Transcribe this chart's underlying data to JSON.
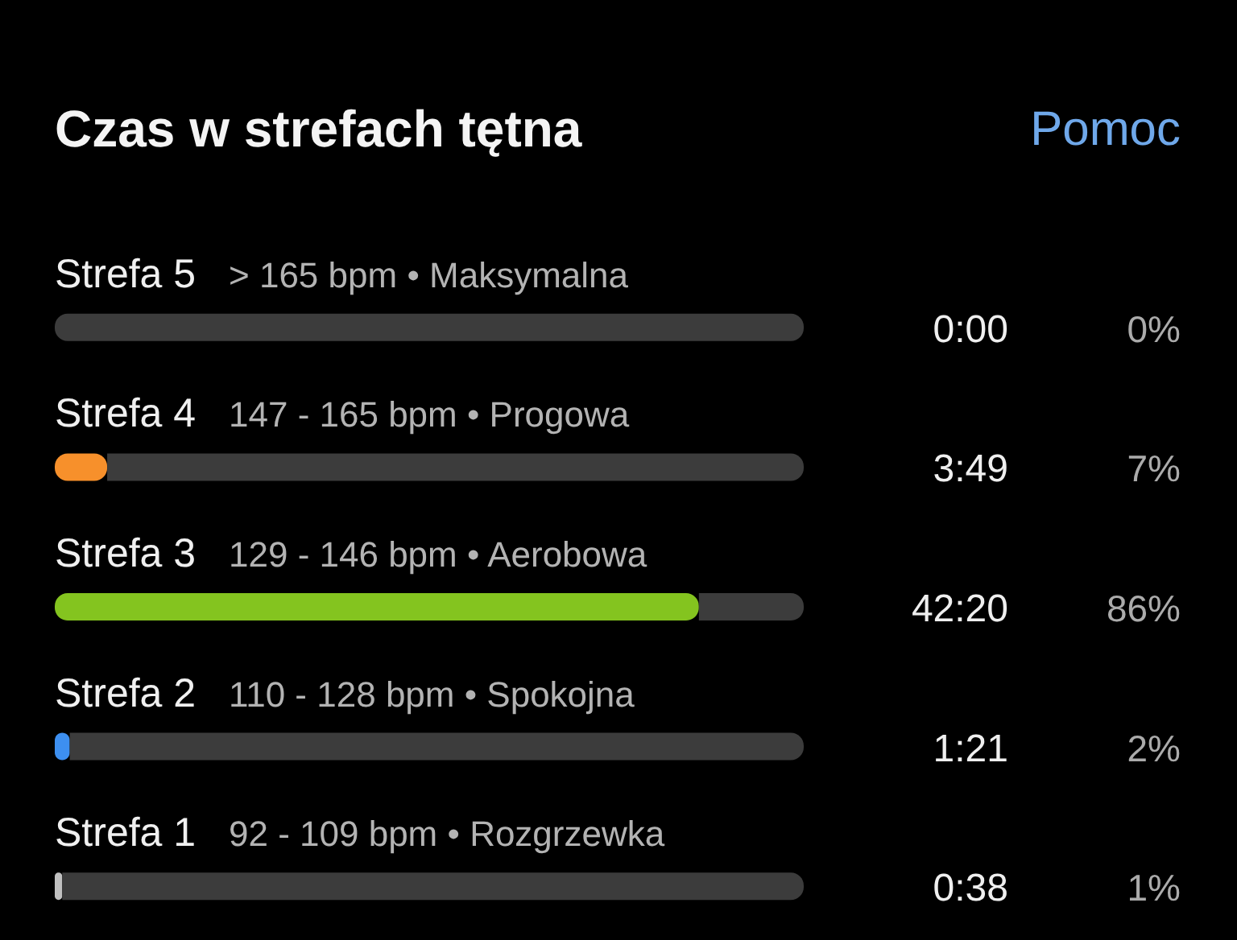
{
  "chart_data": {
    "type": "bar",
    "orientation": "horizontal",
    "stacked": true,
    "title": "Czas w strefach tętna",
    "categories": [
      "Strefa 5",
      "Strefa 4",
      "Strefa 3",
      "Strefa 2",
      "Strefa 1"
    ],
    "xlim": [
      0,
      100
    ],
    "tick_labels": "y",
    "series": [
      {
        "colors": [
          "#f7902b",
          "#f7902b",
          "#84c41f",
          "#3d8ff0",
          "#c0c0c0"
        ],
        "values": [
          0,
          7,
          86,
          2,
          1
        ],
        "value_labels": [
          "0%",
          "7%",
          "86%",
          "2%",
          "1%"
        ]
      },
      {
        "color": "#3c3c3c",
        "values": [
          100,
          93,
          14,
          98,
          99
        ]
      }
    ],
    "annotations": [
      "Pomoc",
      "> 165 bpm • Maksymalna",
      "0:00",
      "147 - 165 bpm • Progowa",
      "3:49",
      "129 - 146 bpm • Aerobowa",
      "42:20",
      "110 - 128 bpm • Spokojna",
      "1:21",
      "92 - 109 bpm • Rozgrzewka",
      "0:38"
    ]
  }
}
